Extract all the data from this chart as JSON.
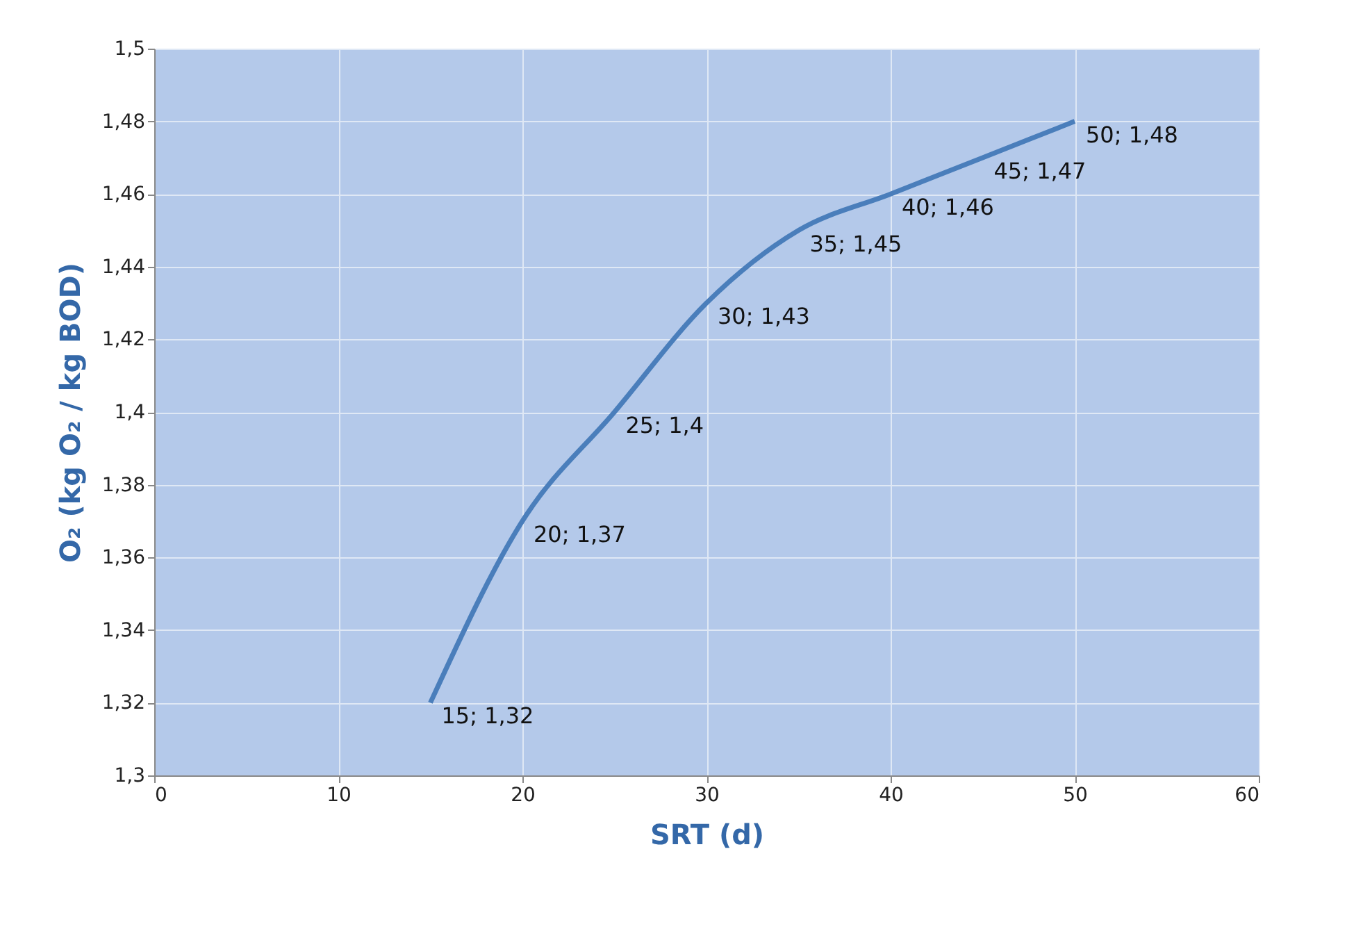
{
  "chart_data": {
    "type": "line",
    "xlabel": "SRT (d)",
    "ylabel": "O₂ (kg O₂ / kg BOD)",
    "x": [
      15,
      20,
      25,
      30,
      35,
      40,
      45,
      50
    ],
    "series": [
      {
        "color": "#4a7ebb",
        "values": [
          1.32,
          1.37,
          1.4,
          1.43,
          1.45,
          1.46,
          1.47,
          1.48
        ],
        "value_labels": [
          "15; 1,32",
          "20; 1,37",
          "25; 1,4",
          "30; 1,43",
          "35; 1,45",
          "40; 1,46",
          "45; 1,47",
          "50; 1,48"
        ]
      }
    ],
    "xlim": [
      0,
      60
    ],
    "xticks": [
      0,
      10,
      20,
      30,
      40,
      50,
      60
    ],
    "ylim": [
      1.3,
      1.5
    ],
    "yticks": [
      {
        "value": 1.3,
        "label": "1,3"
      },
      {
        "value": 1.32,
        "label": "1,32"
      },
      {
        "value": 1.34,
        "label": "1,34"
      },
      {
        "value": 1.36,
        "label": "1,36"
      },
      {
        "value": 1.38,
        "label": "1,38"
      },
      {
        "value": 1.4,
        "label": "1,4"
      },
      {
        "value": 1.42,
        "label": "1,42"
      },
      {
        "value": 1.44,
        "label": "1,44"
      },
      {
        "value": 1.46,
        "label": "1,46"
      },
      {
        "value": 1.48,
        "label": "1,48"
      },
      {
        "value": 1.5,
        "label": "1,5"
      }
    ],
    "grid": true,
    "marker": "none",
    "line_style": "solid"
  }
}
